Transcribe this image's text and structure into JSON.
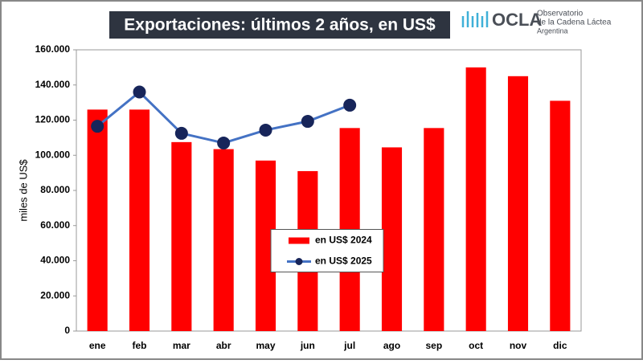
{
  "chart_data": {
    "type": "bar_line",
    "title": "Exportaciones: últimos 2 años, en US$",
    "ylabel": "miles de US$",
    "categories": [
      "ene",
      "feb",
      "mar",
      "abr",
      "may",
      "jun",
      "jul",
      "ago",
      "sep",
      "oct",
      "nov",
      "dic"
    ],
    "series": [
      {
        "name": "en US$ 2024",
        "type": "bar",
        "color": "#ff0000",
        "values": [
          126000,
          126000,
          107500,
          103500,
          97000,
          91000,
          115500,
          104500,
          115500,
          150000,
          145000,
          131000
        ]
      },
      {
        "name": "en US$ 2025",
        "type": "line",
        "color": "#4472c4",
        "marker_color": "#17255a",
        "values": [
          116500,
          136000,
          112500,
          107000,
          114300,
          119300,
          128500,
          null,
          null,
          null,
          null,
          null
        ]
      }
    ],
    "ylim": [
      0,
      160000
    ],
    "yticks": [
      0,
      {
        "value": 20000,
        "label": "20.000"
      },
      {
        "value": 40000,
        "label": "40.000"
      },
      {
        "value": 60000,
        "label": "60.000"
      },
      {
        "value": 80000,
        "label": "80.000"
      },
      {
        "value": 100000,
        "label": "100.000"
      },
      {
        "value": 120000,
        "label": "120.000"
      },
      {
        "value": 140000,
        "label": "140.000"
      },
      {
        "value": 160000,
        "label": "160.000"
      }
    ],
    "legend_loc": "center"
  },
  "logo": {
    "name": "OCLA",
    "lines": [
      "Observatorio",
      "de la Cadena Láctea",
      "Argentina"
    ]
  }
}
